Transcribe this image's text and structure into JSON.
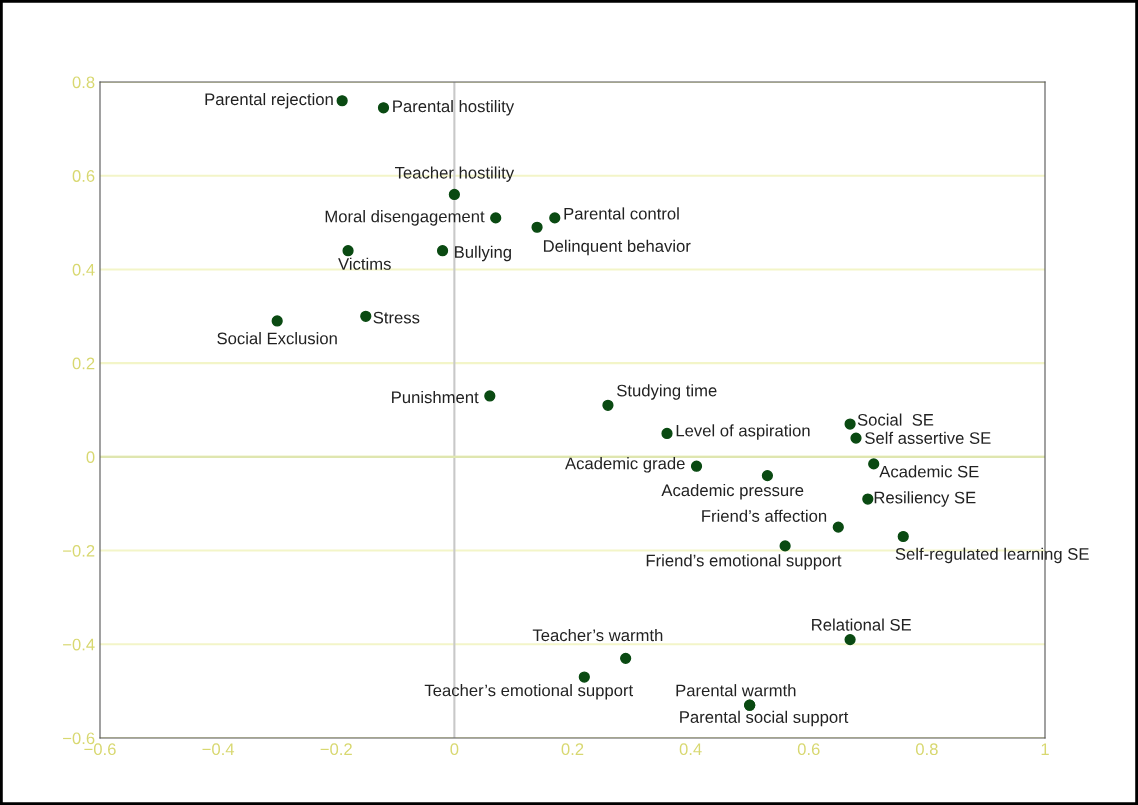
{
  "chart_data": {
    "type": "scatter",
    "x": [
      -0.19,
      -0.12,
      0.0,
      0.07,
      0.17,
      0.14,
      -0.18,
      -0.02,
      -0.15,
      -0.3,
      0.06,
      0.26,
      0.36,
      0.67,
      0.68,
      0.41,
      0.53,
      0.71,
      0.7,
      0.65,
      0.76,
      0.56,
      0.67,
      0.29,
      0.22,
      0.5,
      0.5
    ],
    "series": [
      {
        "color": "#0a4a12",
        "values": [
          0.76,
          0.745,
          0.56,
          0.51,
          0.51,
          0.49,
          0.44,
          0.44,
          0.3,
          0.29,
          0.13,
          0.11,
          0.05,
          0.07,
          0.04,
          -0.02,
          -0.04,
          -0.015,
          -0.09,
          -0.15,
          -0.17,
          -0.19,
          -0.39,
          -0.43,
          -0.47,
          -0.53,
          -0.53
        ]
      }
    ],
    "annotations": [
      {
        "text": "Parental rejection",
        "x": -0.19,
        "y": 0.76
      },
      {
        "text": "Parental hostility",
        "x": -0.12,
        "y": 0.745
      },
      {
        "text": "Teacher hostility",
        "x": 0.0,
        "y": 0.56
      },
      {
        "text": "Moral disengagement",
        "x": 0.07,
        "y": 0.51
      },
      {
        "text": "Parental control",
        "x": 0.17,
        "y": 0.51
      },
      {
        "text": "Delinquent behavior",
        "x": 0.14,
        "y": 0.49
      },
      {
        "text": "Victims",
        "x": -0.18,
        "y": 0.44
      },
      {
        "text": "Bullying",
        "x": -0.02,
        "y": 0.44
      },
      {
        "text": "Stress",
        "x": -0.15,
        "y": 0.3
      },
      {
        "text": "Social Exclusion",
        "x": -0.3,
        "y": 0.29
      },
      {
        "text": "Punishment",
        "x": 0.06,
        "y": 0.13
      },
      {
        "text": "Studying time",
        "x": 0.26,
        "y": 0.11
      },
      {
        "text": "Level of aspiration",
        "x": 0.36,
        "y": 0.05
      },
      {
        "text": "Social  SE",
        "x": 0.67,
        "y": 0.07
      },
      {
        "text": "Self assertive SE",
        "x": 0.68,
        "y": 0.04
      },
      {
        "text": "Academic grade",
        "x": 0.41,
        "y": -0.02
      },
      {
        "text": "Academic pressure",
        "x": 0.53,
        "y": -0.04
      },
      {
        "text": "Academic SE",
        "x": 0.71,
        "y": -0.015
      },
      {
        "text": "Resiliency SE",
        "x": 0.7,
        "y": -0.09
      },
      {
        "text": "Friend’s affection",
        "x": 0.65,
        "y": -0.15
      },
      {
        "text": "Self-regulated learning SE",
        "x": 0.76,
        "y": -0.17
      },
      {
        "text": "Friend’s emotional support",
        "x": 0.56,
        "y": -0.19
      },
      {
        "text": "Relational SE",
        "x": 0.67,
        "y": -0.39
      },
      {
        "text": "Teacher’s warmth",
        "x": 0.29,
        "y": -0.43
      },
      {
        "text": "Teacher’s emotional support",
        "x": 0.22,
        "y": -0.47
      },
      {
        "text": "Parental warmth",
        "x": 0.5,
        "y": -0.53
      },
      {
        "text": "Parental social support",
        "x": 0.5,
        "y": -0.53
      }
    ],
    "xlim": [
      -0.6,
      1
    ],
    "ylim": [
      -0.6,
      0.8
    ],
    "xticks": [
      {
        "value": -0.6,
        "label": "−0.6"
      },
      {
        "value": -0.4,
        "label": "−0.4"
      },
      {
        "value": -0.2,
        "label": "−0.2"
      },
      0,
      0.2,
      0.4,
      0.6,
      0.8,
      1
    ],
    "yticks": [
      {
        "value": -0.6,
        "label": "−0.6"
      },
      {
        "value": -0.4,
        "label": "−0.4"
      },
      {
        "value": -0.2,
        "label": "−0.2"
      },
      0,
      0.2,
      0.4,
      0.6,
      0.8
    ],
    "grid": "y",
    "marker": "circle",
    "ref_lines": [
      {
        "axis": "x",
        "value": 0,
        "color": "#c8c8c8"
      },
      {
        "axis": "y",
        "value": 0,
        "color": "#dfe6b0"
      }
    ]
  }
}
